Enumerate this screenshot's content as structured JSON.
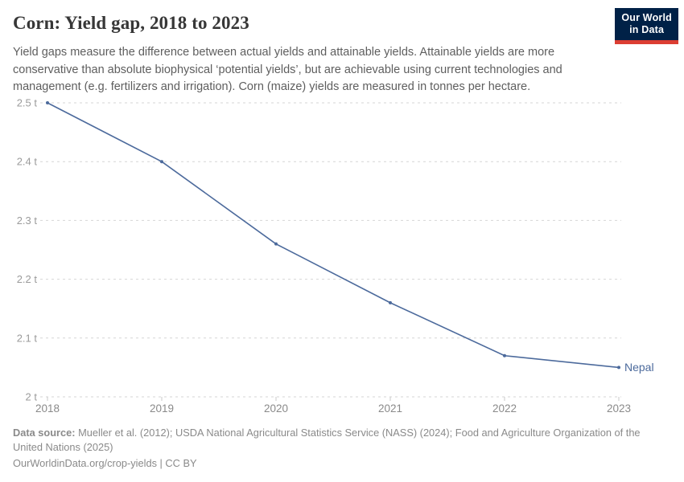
{
  "header": {
    "title": "Corn: Yield gap, 2018 to 2023",
    "subtitle": "Yield gaps measure the difference between actual yields and attainable yields. Attainable yields are more conservative than absolute biophysical ‘potential yields’, but are achievable using current technologies and management (e.g. fertilizers and irrigation). Corn (maize) yields are measured in tonnes per hectare."
  },
  "logo": {
    "line1": "Our World",
    "line2": "in Data",
    "bg_color": "#002147",
    "accent_color": "#dc3e33"
  },
  "chart_data": {
    "type": "line",
    "title": "Corn: Yield gap, 2018 to 2023",
    "x": [
      2018,
      2019,
      2020,
      2021,
      2022,
      2023
    ],
    "xtick_labels": [
      "2018",
      "2019",
      "2020",
      "2021",
      "2022",
      "2023"
    ],
    "series": [
      {
        "name": "Nepal",
        "values": [
          2.5,
          2.4,
          2.26,
          2.16,
          2.07,
          2.05
        ],
        "color": "#4C6A9C"
      }
    ],
    "unit": "tonnes per hectare",
    "ylabel": "",
    "xlabel": "",
    "ylim": [
      2.0,
      2.5
    ],
    "yticks": [
      2.0,
      2.1,
      2.2,
      2.3,
      2.4,
      2.5
    ],
    "ytick_labels": [
      "2 t",
      "2.1 t",
      "2.2 t",
      "2.3 t",
      "2.4 t",
      "2.5 t"
    ],
    "grid": true,
    "grid_style": "dashed",
    "legend_position": "end-of-line"
  },
  "footer": {
    "data_source_label": "Data source:",
    "data_source_text": " Mueller et al. (2012); USDA National Agricultural Statistics Service (NASS) (2024); Food and Agriculture Organization of the United Nations (2025)",
    "link_line": "OurWorldinData.org/crop-yields | CC BY"
  }
}
